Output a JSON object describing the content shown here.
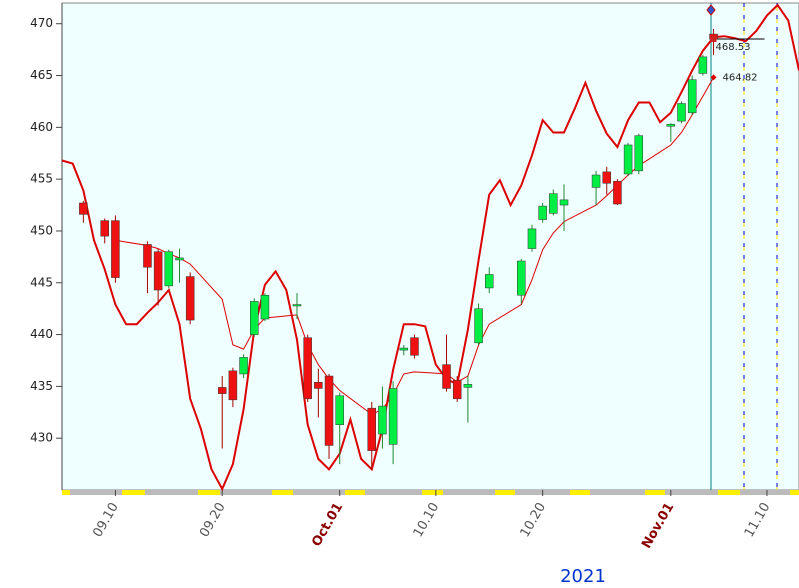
{
  "chart_data": {
    "type": "candlestick",
    "x": [
      "09.07",
      "09.09",
      "09.10",
      "09.13",
      "09.14",
      "09.15",
      "09.16",
      "09.17",
      "09.20",
      "09.21",
      "09.22",
      "09.23",
      "09.24",
      "09.27",
      "09.28",
      "09.29",
      "09.30",
      "10.01",
      "10.04",
      "10.05",
      "10.06",
      "10.07",
      "10.08",
      "10.11",
      "10.12",
      "10.13",
      "10.14",
      "10.15",
      "10.18",
      "10.19",
      "10.20",
      "10.21",
      "10.22",
      "10.25",
      "10.26",
      "10.27",
      "10.28",
      "10.29",
      "11.01",
      "11.02",
      "11.03",
      "11.04",
      "11.05"
    ],
    "open": [
      452.7,
      451.0,
      451.0,
      448.7,
      448.0,
      444.7,
      447.2,
      445.6,
      434.9,
      436.5,
      436.2,
      440.0,
      441.5,
      442.8,
      439.7,
      435.4,
      436.0,
      431.3,
      432.9,
      430.4,
      429.4,
      438.5,
      439.7,
      437.1,
      435.6,
      434.9,
      439.2,
      444.5,
      443.8,
      448.3,
      451.1,
      451.7,
      452.5,
      454.2,
      455.7,
      454.8,
      455.5,
      455.8,
      460.1,
      460.6,
      461.4,
      465.2,
      469.0
    ],
    "high": [
      452.9,
      451.2,
      451.5,
      449.0,
      448.3,
      448.2,
      448.3,
      446.0,
      436.0,
      436.8,
      438.1,
      443.5,
      444.0,
      444.0,
      440.0,
      436.7,
      436.2,
      434.4,
      433.5,
      435.0,
      435.5,
      439.0,
      440.0,
      440.0,
      436.0,
      436.0,
      443.0,
      446.5,
      447.3,
      450.6,
      452.7,
      454.0,
      454.5,
      455.8,
      456.2,
      455.0,
      458.5,
      459.4,
      460.4,
      462.5,
      465.0,
      467.0,
      469.5
    ],
    "low": [
      450.8,
      448.8,
      445.0,
      444.0,
      442.8,
      444.5,
      445.0,
      441.0,
      429.0,
      433.0,
      435.8,
      439.8,
      441.3,
      441.5,
      433.5,
      432.0,
      428.0,
      427.5,
      427.0,
      429.0,
      427.5,
      438.0,
      437.7,
      434.5,
      433.5,
      431.5,
      439.0,
      444.0,
      443.0,
      448.0,
      450.8,
      451.5,
      450.0,
      452.5,
      453.5,
      452.5,
      455.3,
      455.5,
      458.6,
      460.4,
      461.2,
      465.0,
      467.0
    ],
    "close": [
      451.6,
      449.5,
      445.5,
      446.5,
      444.3,
      448.0,
      447.4,
      441.4,
      434.3,
      433.7,
      437.8,
      443.2,
      443.8,
      442.9,
      433.8,
      434.8,
      429.3,
      434.1,
      428.8,
      433.1,
      434.8,
      438.7,
      438.0,
      434.8,
      433.8,
      435.2,
      442.5,
      445.8,
      447.1,
      450.2,
      452.4,
      453.6,
      453.0,
      455.4,
      454.6,
      452.6,
      458.3,
      459.2,
      460.3,
      462.3,
      464.6,
      466.8,
      468.5
    ],
    "up_color": "#00ee44",
    "down_color": "#ee1111",
    "series": [
      {
        "color": "#dd0000",
        "x": [
          "09.05",
          "09.06",
          "09.07",
          "09.08",
          "09.09",
          "09.10",
          "09.11",
          "09.12",
          "09.13",
          "09.14",
          "09.15",
          "09.16",
          "09.17",
          "09.18",
          "09.19",
          "09.20",
          "09.21",
          "09.22",
          "09.23",
          "09.24",
          "09.25",
          "09.26",
          "09.27",
          "09.28",
          "09.29",
          "09.30",
          "10.01",
          "10.02",
          "10.03",
          "10.04",
          "10.05",
          "10.06",
          "10.07",
          "10.08",
          "10.09",
          "10.10",
          "10.11",
          "10.12",
          "10.13",
          "10.14",
          "10.15",
          "10.16",
          "10.17",
          "10.18",
          "10.19",
          "10.20",
          "10.21",
          "10.22",
          "10.23",
          "10.24",
          "10.25",
          "10.26",
          "10.27",
          "10.28",
          "10.29",
          "10.30",
          "10.31",
          "11.01",
          "11.02",
          "11.03",
          "11.04",
          "11.05",
          "11.06",
          "11.07",
          "11.08",
          "11.09",
          "11.10",
          "11.11",
          "11.12",
          "11.13"
        ],
        "values": [
          456.8,
          456.5,
          453.9,
          449.1,
          446.3,
          442.9,
          441.0,
          441.0,
          442.1,
          443.1,
          444.3,
          441.0,
          433.8,
          430.9,
          427.0,
          425.1,
          427.5,
          432.8,
          440.5,
          444.8,
          446.1,
          444.3,
          439.5,
          431.3,
          428.0,
          427.0,
          428.5,
          431.8,
          428.0,
          427.0,
          430.9,
          436.6,
          441.0,
          441.0,
          440.8,
          437.1,
          435.7,
          435.2,
          440.5,
          447.2,
          453.5,
          454.9,
          452.5,
          454.4,
          457.3,
          460.7,
          459.5,
          459.5,
          461.8,
          464.3,
          461.6,
          459.4,
          458.1,
          460.7,
          462.4,
          462.4,
          460.5,
          461.4,
          463.4,
          465.5,
          467.4,
          468.7,
          468.8,
          468.6,
          468.3,
          469.3,
          470.8,
          471.8,
          470.3,
          465.5
        ],
        "width": 2
      },
      {
        "color": "#dd0000",
        "x": [
          "09.10",
          "09.13",
          "09.14",
          "09.15",
          "09.16",
          "09.17",
          "09.20",
          "09.21",
          "09.22",
          "09.23",
          "09.24",
          "09.27",
          "09.28",
          "09.29",
          "09.30",
          "10.01",
          "10.04",
          "10.05",
          "10.06",
          "10.07",
          "10.08",
          "10.11",
          "10.12",
          "10.13",
          "10.14",
          "10.15",
          "10.18",
          "10.19",
          "10.20",
          "10.21",
          "10.22",
          "10.25",
          "10.26",
          "10.27",
          "10.28",
          "10.29",
          "11.01",
          "11.02",
          "11.03",
          "11.04",
          "11.05"
        ],
        "values": [
          449.1,
          448.6,
          448.3,
          447.8,
          447.4,
          446.8,
          443.4,
          439.0,
          438.6,
          440.5,
          441.6,
          441.9,
          439.0,
          437.1,
          435.7,
          434.6,
          432.3,
          432.8,
          434.2,
          436.2,
          436.4,
          436.2,
          435.4,
          436.0,
          439.0,
          441.0,
          442.9,
          445.3,
          448.2,
          449.8,
          450.9,
          452.5,
          453.4,
          454.4,
          455.4,
          456.3,
          458.3,
          459.5,
          461.2,
          463.0,
          464.82
        ],
        "width": 1
      }
    ],
    "annotations": [
      {
        "x": "11.05",
        "value": 468.53
      },
      {
        "x": "11.05",
        "value": 464.82
      }
    ],
    "xlim": [
      "09.05",
      "11.13"
    ],
    "xticks": [
      "09.10",
      "09.20",
      {
        "value": "10.01",
        "label": "Oct.01"
      },
      "10.10",
      "10.20",
      {
        "value": "11.01",
        "label": "Nov.01"
      },
      "11.10"
    ],
    "ylim": [
      425,
      472
    ],
    "yticks": [
      430,
      435,
      440,
      445,
      450,
      455,
      460,
      465,
      470
    ],
    "year_label": "2021"
  }
}
